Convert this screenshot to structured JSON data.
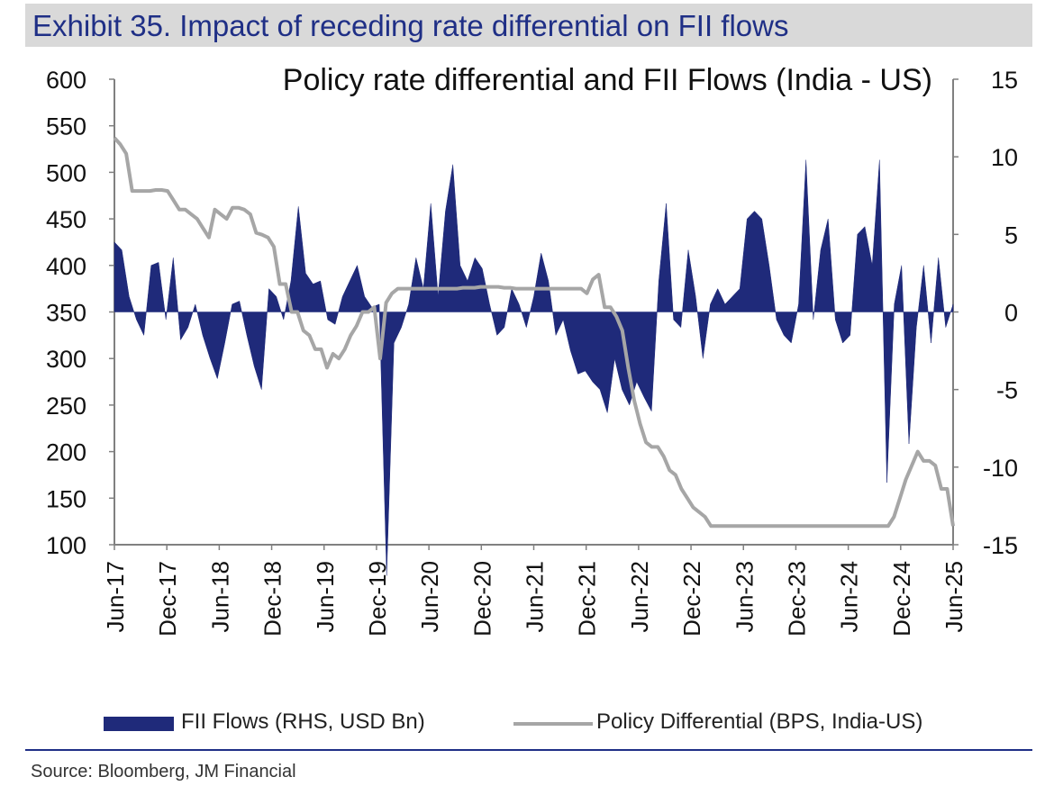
{
  "exhibit": {
    "title": "Exhibit 35. Impact of receding rate differential on FII flows"
  },
  "source": "Source: Bloomberg, JM Financial",
  "colors": {
    "header_bg": "#d9d9d9",
    "title_text": "#1f2f86",
    "fii_fill": "#1f2a7a",
    "differential_line": "#a6a6a6",
    "axis": "#808080"
  },
  "legend": {
    "fii": "FII Flows (RHS, USD Bn)",
    "differential": "Policy Differential (BPS, India-US)"
  },
  "chart_data": {
    "type": "area+line",
    "title": "Policy rate differential and FII Flows (India - US)",
    "grid": false,
    "legend_position": "bottom",
    "left_axis": {
      "ticks": [
        600,
        550,
        500,
        450,
        400,
        350,
        300,
        250,
        200,
        150,
        100
      ],
      "range": [
        100,
        600
      ],
      "series": "Policy Differential (BPS, India-US)"
    },
    "right_axis": {
      "ticks": [
        15,
        10,
        5,
        0,
        -5,
        -10,
        -15
      ],
      "range": [
        -15,
        15
      ],
      "series": "FII Flows (RHS, USD Bn)"
    },
    "x_tick_labels": [
      "Jun-17",
      "Dec-17",
      "Jun-18",
      "Dec-18",
      "Jun-19",
      "Dec-19",
      "Jun-20",
      "Dec-20",
      "Jun-21",
      "Dec-21",
      "Jun-22",
      "Dec-22",
      "Jun-23",
      "Dec-23",
      "Jun-24",
      "Dec-24",
      "Jun-25"
    ],
    "x_start": "Jun-17",
    "series": [
      {
        "name": "FII Flows (RHS, USD Bn)",
        "axis": "right",
        "kind": "area",
        "values": [
          4.5,
          4.0,
          1.0,
          -0.5,
          -1.5,
          3.0,
          3.2,
          -0.5,
          3.5,
          -1.8,
          -1.0,
          0.5,
          -1.5,
          -3.0,
          -4.3,
          -2.0,
          0.5,
          0.7,
          -1.5,
          -3.5,
          -5.0,
          1.5,
          1.0,
          -0.5,
          2.0,
          6.8,
          2.5,
          1.8,
          2.0,
          -0.5,
          -0.8,
          1.0,
          2.0,
          3.0,
          1.0,
          0.3,
          0.5,
          -17.0,
          -2.0,
          -1.0,
          0.5,
          3.5,
          1.5,
          7.0,
          1.0,
          6.5,
          9.5,
          3.0,
          2.0,
          3.5,
          2.8,
          0.5,
          -1.5,
          -1.0,
          1.5,
          0.5,
          -1.0,
          1.0,
          3.8,
          2.0,
          -1.5,
          -0.5,
          -2.5,
          -4.0,
          -3.8,
          -4.5,
          -5.0,
          -6.5,
          -3.0,
          -5.0,
          -6.0,
          -4.5,
          -5.5,
          -6.4,
          2.0,
          7.0,
          -0.5,
          -1.0,
          4.0,
          1.0,
          -3.0,
          0.5,
          1.5,
          0.5,
          1.0,
          1.5,
          6.0,
          6.5,
          6.0,
          3.0,
          -0.5,
          -1.5,
          -2.0,
          0.5,
          9.8,
          -0.5,
          4.0,
          6.0,
          -0.5,
          -2.0,
          -1.5,
          5.0,
          5.5,
          3.0,
          9.8,
          -11.0,
          0.5,
          3.0,
          -8.5,
          -1.0,
          3.0,
          -2.0,
          3.5,
          -1.0,
          0.5
        ],
        "dates_note": "Monthly, Jun-17 to Jun-25"
      },
      {
        "name": "Policy Differential (BPS, India-US)",
        "axis": "left",
        "kind": "line",
        "values": [
          537,
          530,
          520,
          480,
          480,
          480,
          480,
          481,
          481,
          480,
          470,
          460,
          460,
          455,
          450,
          440,
          430,
          460,
          455,
          450,
          462,
          462,
          460,
          455,
          435,
          433,
          430,
          420,
          380,
          380,
          350,
          350,
          330,
          325,
          310,
          310,
          290,
          305,
          300,
          310,
          325,
          335,
          350,
          350,
          355,
          300,
          360,
          370,
          375,
          375,
          375,
          375,
          375,
          375,
          375,
          375,
          375,
          375,
          375,
          376,
          376,
          376,
          377,
          377,
          377,
          377,
          376,
          376,
          375,
          375,
          375,
          375,
          375,
          375,
          375,
          375,
          375,
          375,
          375,
          375,
          370,
          385,
          390,
          355,
          355,
          345,
          330,
          290,
          255,
          230,
          210,
          205,
          205,
          195,
          180,
          175,
          160,
          150,
          140,
          135,
          130,
          120,
          120,
          120,
          120,
          120,
          120,
          120,
          120,
          120,
          120,
          120,
          120,
          120,
          120,
          120,
          120,
          120,
          120,
          120,
          120,
          120,
          120,
          120,
          120,
          120,
          120,
          120,
          120,
          120,
          120,
          120,
          130,
          150,
          170,
          185,
          200,
          190,
          190,
          185,
          160,
          160,
          120
        ],
        "dates_note": "Approx. semi-monthly, Jun-17 to Jun-25"
      }
    ]
  }
}
